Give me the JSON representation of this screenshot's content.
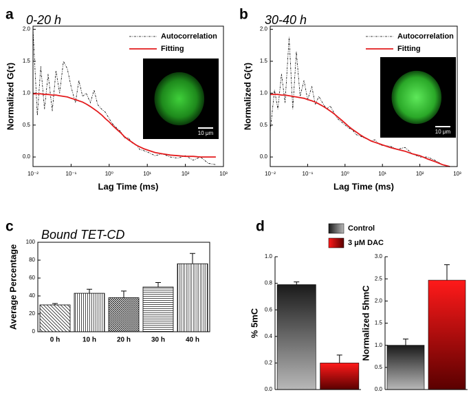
{
  "chart_data": [
    {
      "type": "line",
      "panel_label": "a",
      "title": "0-20 h",
      "x_label": "Lag Time (ms)",
      "y_label": "Normalized G(τ)",
      "log_x": true,
      "x": [
        0.01,
        0.013,
        0.016,
        0.02,
        0.025,
        0.032,
        0.04,
        0.05,
        0.063,
        0.08,
        0.1,
        0.13,
        0.16,
        0.2,
        0.25,
        0.32,
        0.4,
        0.5,
        0.63,
        0.8,
        1,
        1.3,
        1.6,
        2,
        2.5,
        3.2,
        4,
        5,
        6.3,
        8,
        10,
        16,
        25,
        40,
        63,
        100,
        160,
        250,
        400,
        630
      ],
      "xlim": [
        0.01,
        1000
      ],
      "xticks": [
        {
          "value": 0.01,
          "label": "10⁻²"
        },
        {
          "value": 0.1,
          "label": "10⁻¹"
        },
        {
          "value": 1,
          "label": "10⁰"
        },
        {
          "value": 10,
          "label": "10¹"
        },
        {
          "value": 100,
          "label": "10²"
        },
        {
          "value": 1000,
          "label": "10³"
        }
      ],
      "ylim": [
        -0.15,
        2.05
      ],
      "yticks": [
        {
          "value": 0,
          "label": "0.0"
        },
        0.5,
        {
          "value": 1,
          "label": "1.0"
        },
        1.5,
        {
          "value": 2,
          "label": "2.0"
        }
      ],
      "inset_scale": "10 μm",
      "series": [
        {
          "name": "Autocorrelation",
          "color": "#000000",
          "linestyle": "dashdot",
          "values": [
            2.0,
            0.65,
            1.42,
            0.75,
            1.3,
            0.72,
            1.35,
            1.0,
            1.5,
            1.38,
            1.1,
            0.85,
            1.2,
            0.95,
            1.0,
            0.85,
            1.05,
            0.82,
            0.75,
            0.7,
            0.6,
            0.5,
            0.45,
            0.4,
            0.3,
            0.3,
            0.22,
            0.2,
            0.12,
            0.1,
            0.08,
            0.02,
            0.05,
            0.0,
            -0.02,
            0.02,
            -0.05,
            0.0,
            -0.1,
            -0.12
          ]
        },
        {
          "name": "Fitting",
          "color": "#e31a1c",
          "linestyle": "solid",
          "values": [
            0.99,
            0.99,
            0.99,
            0.98,
            0.98,
            0.97,
            0.97,
            0.96,
            0.95,
            0.94,
            0.92,
            0.9,
            0.88,
            0.86,
            0.83,
            0.79,
            0.75,
            0.71,
            0.66,
            0.6,
            0.55,
            0.48,
            0.43,
            0.38,
            0.32,
            0.27,
            0.23,
            0.19,
            0.16,
            0.13,
            0.11,
            0.07,
            0.05,
            0.03,
            0.02,
            0.01,
            0.01,
            0,
            0,
            0
          ]
        }
      ]
    },
    {
      "type": "line",
      "panel_label": "b",
      "title": "30-40 h",
      "x_label": "Lag Time (ms)",
      "y_label": "Normalized G(τ)",
      "log_x": true,
      "x": [
        0.01,
        0.013,
        0.016,
        0.02,
        0.025,
        0.032,
        0.04,
        0.05,
        0.063,
        0.08,
        0.1,
        0.13,
        0.16,
        0.2,
        0.25,
        0.32,
        0.4,
        0.5,
        0.63,
        0.8,
        1,
        1.3,
        1.6,
        2,
        2.5,
        3.2,
        4,
        5,
        6.3,
        8,
        10,
        16,
        25,
        40,
        63,
        100,
        160,
        250,
        400,
        630
      ],
      "xlim": [
        0.01,
        1000
      ],
      "xticks": [
        {
          "value": 0.01,
          "label": "10⁻²"
        },
        {
          "value": 0.1,
          "label": "10⁻¹"
        },
        {
          "value": 1,
          "label": "10⁰"
        },
        {
          "value": 10,
          "label": "10¹"
        },
        {
          "value": 100,
          "label": "10²"
        },
        {
          "value": 1000,
          "label": "10³"
        }
      ],
      "ylim": [
        -0.15,
        2.05
      ],
      "yticks": [
        {
          "value": 0,
          "label": "0.0"
        },
        0.5,
        {
          "value": 1,
          "label": "1.0"
        },
        1.5,
        {
          "value": 2,
          "label": "2.0"
        }
      ],
      "inset_scale": "10 μm",
      "series": [
        {
          "name": "Autocorrelation",
          "color": "#000000",
          "linestyle": "dashdot",
          "values": [
            0.4,
            1.05,
            0.75,
            1.3,
            0.85,
            1.88,
            0.75,
            1.65,
            0.95,
            1.2,
            0.9,
            1.1,
            0.82,
            0.95,
            0.85,
            0.75,
            0.8,
            0.7,
            0.6,
            0.55,
            0.5,
            0.45,
            0.42,
            0.35,
            0.33,
            0.3,
            0.28,
            0.25,
            0.27,
            0.2,
            0.18,
            0.17,
            0.12,
            0.15,
            0.05,
            0.0,
            0.0,
            -0.05,
            -0.12,
            -0.15
          ]
        },
        {
          "name": "Fitting",
          "color": "#e31a1c",
          "linestyle": "solid",
          "values": [
            0.98,
            0.98,
            0.98,
            0.97,
            0.97,
            0.96,
            0.95,
            0.94,
            0.93,
            0.92,
            0.9,
            0.88,
            0.86,
            0.83,
            0.8,
            0.76,
            0.72,
            0.68,
            0.63,
            0.58,
            0.53,
            0.47,
            0.43,
            0.39,
            0.35,
            0.31,
            0.28,
            0.25,
            0.23,
            0.21,
            0.19,
            0.15,
            0.12,
            0.09,
            0.05,
            0.02,
            -0.03,
            -0.07,
            -0.12,
            -0.15
          ]
        }
      ]
    },
    {
      "type": "bar",
      "panel_label": "c",
      "title": "Bound TET-CD",
      "y_label": "Average Percentage",
      "categories": [
        "0 h",
        "10 h",
        "20 h",
        "30 h",
        "40 h"
      ],
      "values": [
        30,
        43,
        38,
        50,
        76
      ],
      "errors": [
        1.5,
        4.5,
        7.5,
        5,
        11.5
      ],
      "color": "#000000",
      "ylim": [
        0,
        100
      ],
      "yticks": [
        0,
        20,
        40,
        60,
        80,
        100
      ]
    },
    {
      "type": "bar",
      "panel_label": "d",
      "y_label": "% 5mC",
      "legend": "top",
      "series": [
        {
          "name": "Control",
          "color": "#1a1a1a",
          "values": [
            0.79
          ],
          "errors": [
            0.02
          ]
        },
        {
          "name": "3 μM DAC",
          "color": "#ff1a1a",
          "values": [
            0.2
          ],
          "errors": [
            0.06
          ]
        }
      ],
      "ylim": [
        0,
        1
      ],
      "yticks": [
        {
          "value": 0,
          "label": "0.0"
        },
        0.2,
        0.4,
        0.6,
        0.8,
        {
          "value": 1,
          "label": "1.0"
        }
      ]
    },
    {
      "type": "bar",
      "y_label": "Normalized 5hmC",
      "series": [
        {
          "color": "#1a1a1a",
          "values": [
            1.0
          ],
          "errors": [
            0.14
          ]
        },
        {
          "color": "#ff1a1a",
          "values": [
            2.47
          ],
          "errors": [
            0.35
          ]
        }
      ],
      "ylim": [
        0,
        3
      ],
      "yticks": [
        {
          "value": 0,
          "label": "0.0"
        },
        0.5,
        {
          "value": 1,
          "label": "1.0"
        },
        1.5,
        {
          "value": 2,
          "label": "2.0"
        },
        2.5,
        {
          "value": 3,
          "label": "3.0"
        }
      ]
    }
  ]
}
